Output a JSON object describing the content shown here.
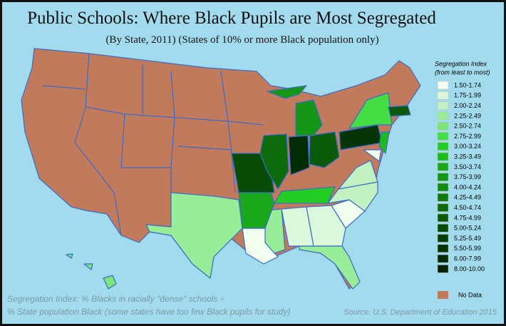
{
  "title": "Public Schools: Where Black  Pupils are Most Segregated",
  "subtitle": "(By State, 2011) (States of 10% or more Black population only)",
  "legend": {
    "title": [
      "Segregation Index",
      "(from least to most)"
    ],
    "items": [
      {
        "label": "1.50-1.74",
        "color": "#f0fff0"
      },
      {
        "label": "1.75-1.99",
        "color": "#dcf8dc"
      },
      {
        "label": "2.00-2.24",
        "color": "#c2f2c2"
      },
      {
        "label": "2.25-2.49",
        "color": "#98ee98"
      },
      {
        "label": "2.50-2.74",
        "color": "#7ae67a"
      },
      {
        "label": "2.75-2.99",
        "color": "#44dd44"
      },
      {
        "label": "3.00-3.24",
        "color": "#22cc22"
      },
      {
        "label": "3.25-3.49",
        "color": "#1cbb1c"
      },
      {
        "label": "3.50-3.74",
        "color": "#19a819"
      },
      {
        "label": "3.75-3.99",
        "color": "#169616"
      },
      {
        "label": "4.00-4.24",
        "color": "#148a14"
      },
      {
        "label": "4.25-4.49",
        "color": "#107a10"
      },
      {
        "label": "4.50-4.74",
        "color": "#0d6a0d"
      },
      {
        "label": "4.75-4.99",
        "color": "#0a5a0a"
      },
      {
        "label": "5.00-5.24",
        "color": "#084c08"
      },
      {
        "label": "5.25-5.49",
        "color": "#063f06"
      },
      {
        "label": "5.50-5.99",
        "color": "#053505"
      },
      {
        "label": "6.00-7.99",
        "color": "#042c04"
      },
      {
        "label": "8.00-10.00",
        "color": "#022202"
      }
    ],
    "no_data": {
      "label": "No Data",
      "color": "#c17a5b"
    }
  },
  "footnote": [
    "Segregation Index: % Blacks in racially \"dense\" schools ÷",
    "% State population Black (some states have too few Black pupils for study)"
  ],
  "source": "Source: U.S. Department of Education 2015"
}
